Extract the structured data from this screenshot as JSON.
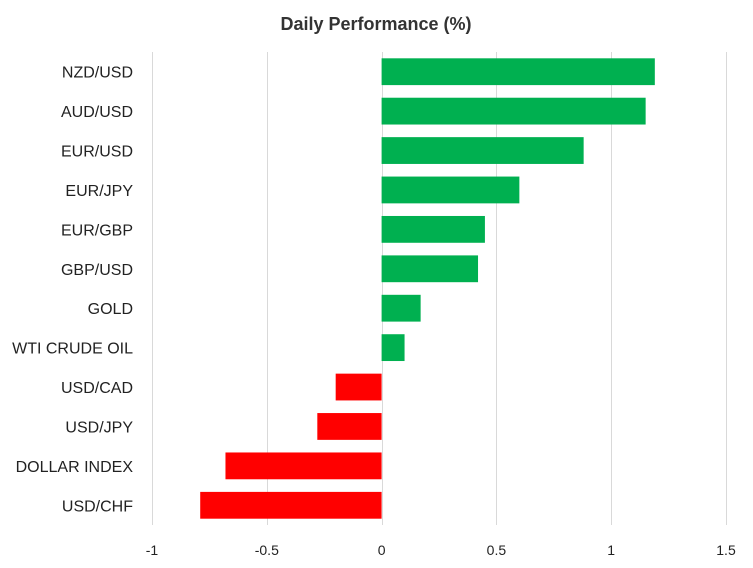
{
  "chart_data": {
    "type": "bar",
    "orientation": "horizontal",
    "title": "Daily Performance (%)",
    "xlabel": "",
    "ylabel": "",
    "categories": [
      "NZD/USD",
      "AUD/USD",
      "EUR/USD",
      "EUR/JPY",
      "EUR/GBP",
      "GBP/USD",
      "GOLD",
      "WTI CRUDE OIL",
      "USD/CAD",
      "USD/JPY",
      "DOLLAR INDEX",
      "USD/CHF"
    ],
    "values": [
      1.19,
      1.15,
      0.88,
      0.6,
      0.45,
      0.42,
      0.17,
      0.1,
      -0.2,
      -0.28,
      -0.68,
      -0.79
    ],
    "xlim": [
      -1,
      1.5
    ],
    "xticks": [
      -1,
      -0.5,
      0,
      0.5,
      1,
      1.5
    ],
    "xtick_labels": [
      "-1",
      "-0.5",
      "0",
      "0.5",
      "1",
      "1.5"
    ],
    "grid": "vertical",
    "legend": "none",
    "colors": {
      "positive": "#00b050",
      "negative": "#ff0000",
      "grid": "#d9d9d9"
    }
  }
}
